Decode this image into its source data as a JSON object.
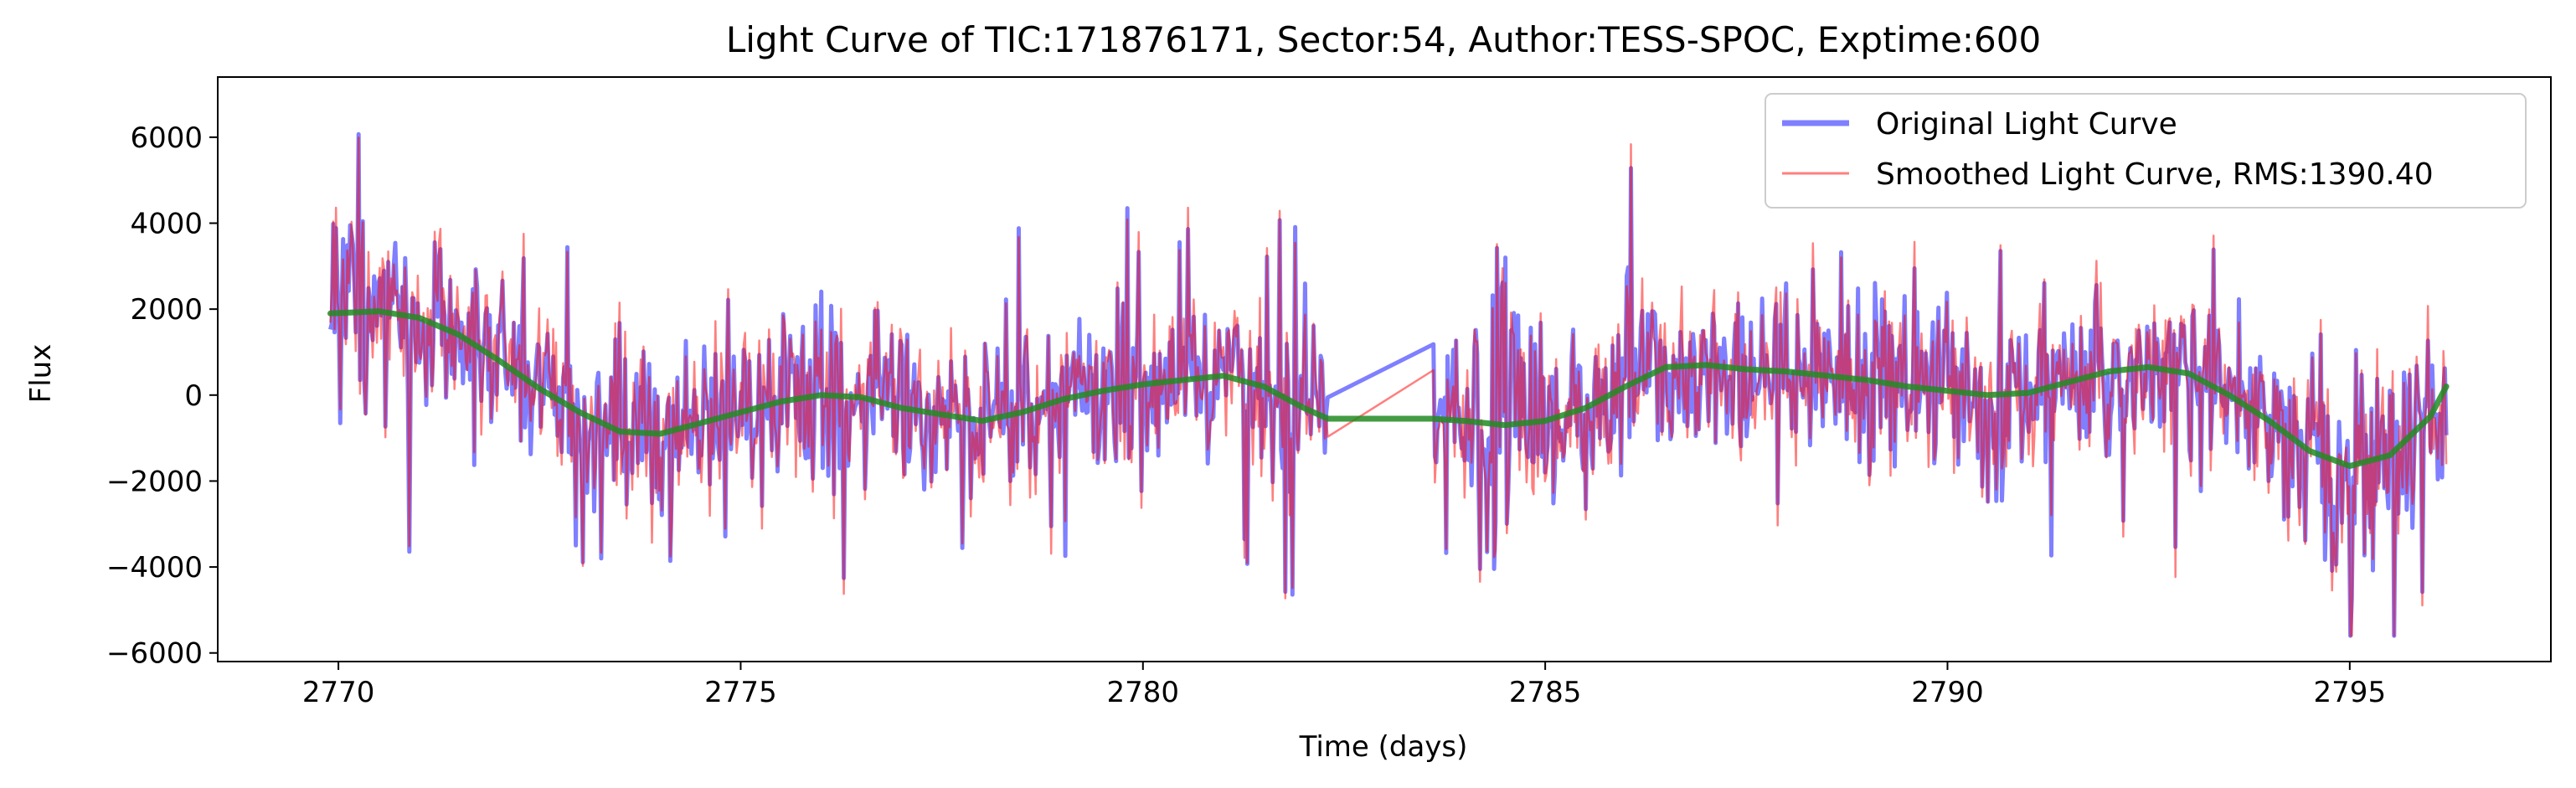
{
  "chart_data": {
    "type": "line",
    "title": "Light Curve of TIC:171876171, Sector:54, Author:TESS-SPOC, Exptime:600",
    "xlabel": "Time (days)",
    "ylabel": "Flux",
    "xlim": [
      2768.5,
      2797.5
    ],
    "ylim": [
      -6200,
      7400
    ],
    "xticks": [
      2770,
      2775,
      2780,
      2785,
      2790,
      2795
    ],
    "yticks": [
      -6000,
      -4000,
      -2000,
      0,
      2000,
      4000,
      6000
    ],
    "grid": false,
    "legend_position": "top-right",
    "data_gap": [
      2782.3,
      2783.6
    ],
    "series": [
      {
        "name": "Original Light Curve",
        "color": "#0000ff",
        "style": "noisy",
        "envelope": [
          {
            "x": 2769.9,
            "lo": 1500,
            "hi": 6900
          },
          {
            "x": 2770.5,
            "lo": -1500,
            "hi": 4500
          },
          {
            "x": 2772.0,
            "lo": -2500,
            "hi": 3500
          },
          {
            "x": 2773.8,
            "lo": -4600,
            "hi": 3000
          },
          {
            "x": 2776.0,
            "lo": -3500,
            "hi": 3000
          },
          {
            "x": 2778.0,
            "lo": -3000,
            "hi": 3600
          },
          {
            "x": 2780.0,
            "lo": -3000,
            "hi": 4500
          },
          {
            "x": 2781.0,
            "lo": -3000,
            "hi": 4200
          },
          {
            "x": 2782.3,
            "lo": -3000,
            "hi": 2000
          },
          {
            "x": 2783.6,
            "lo": -3000,
            "hi": 3000
          },
          {
            "x": 2784.4,
            "lo": -5200,
            "hi": 3000
          },
          {
            "x": 2786.0,
            "lo": -3500,
            "hi": 5000
          },
          {
            "x": 2788.0,
            "lo": -3000,
            "hi": 4500
          },
          {
            "x": 2790.0,
            "lo": -3500,
            "hi": 4000
          },
          {
            "x": 2792.0,
            "lo": -3000,
            "hi": 4200
          },
          {
            "x": 2793.0,
            "lo": -3500,
            "hi": 5000
          },
          {
            "x": 2794.8,
            "lo": -5600,
            "hi": 3000
          },
          {
            "x": 2796.2,
            "lo": -3000,
            "hi": 2000
          }
        ]
      },
      {
        "name": "Smoothed Light Curve, RMS:1390.40",
        "color": "#ff0000",
        "style": "noisy"
      },
      {
        "name": "",
        "color": "#228b22",
        "style": "smooth",
        "points": [
          [
            2769.9,
            1900
          ],
          [
            2770.5,
            1950
          ],
          [
            2771.0,
            1800
          ],
          [
            2771.5,
            1400
          ],
          [
            2772.0,
            800
          ],
          [
            2772.5,
            150
          ],
          [
            2773.0,
            -400
          ],
          [
            2773.5,
            -850
          ],
          [
            2774.0,
            -900
          ],
          [
            2774.5,
            -650
          ],
          [
            2775.0,
            -400
          ],
          [
            2775.5,
            -150
          ],
          [
            2776.0,
            0
          ],
          [
            2776.5,
            -50
          ],
          [
            2777.0,
            -300
          ],
          [
            2777.5,
            -450
          ],
          [
            2778.0,
            -600
          ],
          [
            2778.5,
            -400
          ],
          [
            2779.0,
            -100
          ],
          [
            2779.5,
            100
          ],
          [
            2780.0,
            250
          ],
          [
            2780.5,
            350
          ],
          [
            2781.0,
            450
          ],
          [
            2781.5,
            200
          ],
          [
            2782.0,
            -300
          ],
          [
            2782.3,
            -550
          ],
          [
            2783.6,
            -550
          ],
          [
            2784.0,
            -600
          ],
          [
            2784.5,
            -700
          ],
          [
            2785.0,
            -600
          ],
          [
            2785.5,
            -300
          ],
          [
            2786.0,
            200
          ],
          [
            2786.5,
            650
          ],
          [
            2787.0,
            700
          ],
          [
            2787.5,
            600
          ],
          [
            2788.0,
            550
          ],
          [
            2788.5,
            450
          ],
          [
            2789.0,
            350
          ],
          [
            2789.5,
            200
          ],
          [
            2790.0,
            100
          ],
          [
            2790.5,
            0
          ],
          [
            2791.0,
            50
          ],
          [
            2791.5,
            300
          ],
          [
            2792.0,
            550
          ],
          [
            2792.5,
            650
          ],
          [
            2793.0,
            500
          ],
          [
            2793.5,
            0
          ],
          [
            2794.0,
            -600
          ],
          [
            2794.5,
            -1300
          ],
          [
            2795.0,
            -1650
          ],
          [
            2795.5,
            -1400
          ],
          [
            2796.0,
            -500
          ],
          [
            2796.2,
            200
          ]
        ]
      }
    ]
  }
}
